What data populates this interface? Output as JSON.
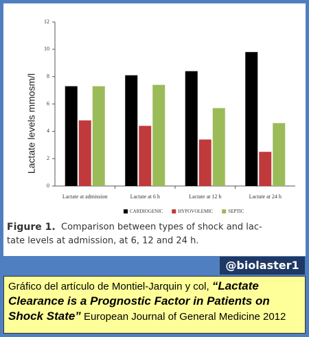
{
  "chart_data": {
    "type": "bar",
    "y_label": "Lactate levels mmosm/l",
    "categories": [
      "Lactate at admission",
      "Lactate at 6 h",
      "Lactate at 12 h",
      "Lactate at 24 h"
    ],
    "series": [
      {
        "name": "CARDIOGENIC",
        "color": "#000000",
        "values": [
          7.3,
          8.1,
          8.4,
          9.8
        ]
      },
      {
        "name": "HYPOVOLEMIC",
        "color": "#c0393b",
        "values": [
          4.8,
          4.4,
          3.4,
          2.5
        ]
      },
      {
        "name": "SEPTIC",
        "color": "#9bbb59",
        "values": [
          7.3,
          7.4,
          5.7,
          4.6
        ]
      }
    ],
    "ylim": [
      0,
      12
    ],
    "yticks": [
      0,
      2,
      4,
      6,
      8,
      10,
      12
    ]
  },
  "caption": {
    "label": "Figure 1.",
    "lines": [
      "Comparison between types of shock and lac-",
      "tate levels at admission, at 6, 12 and 24 h."
    ]
  },
  "handle": "@biolaster1",
  "credit": {
    "intro": "Gráfico del artículo de Montiel-Jarquin y col, ",
    "title": "“Lactate Clearance is a Prognostic Factor in Patients on Shock State”",
    "source": " European Journal of General Medicine 2012"
  }
}
